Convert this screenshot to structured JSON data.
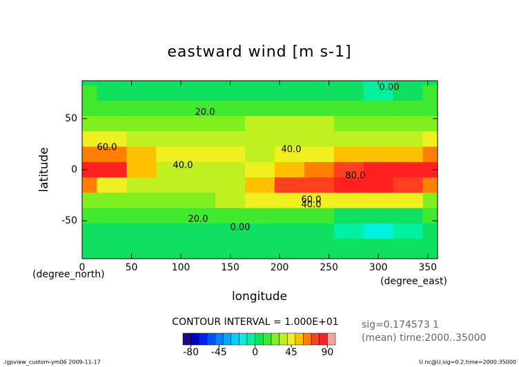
{
  "chart_data": {
    "type": "contour",
    "title": "eastward wind [m s-1]",
    "xlabel": "longitude",
    "ylabel": "latitude",
    "xunit": "(degree_east)",
    "yunit": "(degree_north)",
    "x": [
      0,
      30,
      60,
      90,
      120,
      150,
      180,
      210,
      240,
      270,
      300,
      330,
      360
    ],
    "y": [
      90,
      75,
      60,
      45,
      30,
      15,
      0,
      -15,
      -30,
      -45,
      -60,
      -75,
      -90
    ],
    "z": [
      [
        5,
        5,
        5,
        5,
        5,
        5,
        5,
        5,
        5,
        0,
        -2,
        5,
        5
      ],
      [
        10,
        8,
        8,
        8,
        8,
        8,
        8,
        5,
        5,
        2,
        -2,
        5,
        10
      ],
      [
        18,
        15,
        15,
        15,
        15,
        15,
        15,
        15,
        12,
        12,
        10,
        10,
        18
      ],
      [
        25,
        25,
        22,
        22,
        22,
        25,
        30,
        32,
        32,
        28,
        22,
        20,
        25
      ],
      [
        45,
        42,
        35,
        32,
        32,
        35,
        35,
        35,
        35,
        35,
        38,
        38,
        45
      ],
      [
        65,
        62,
        55,
        42,
        40,
        42,
        38,
        40,
        45,
        50,
        52,
        55,
        65
      ],
      [
        82,
        80,
        58,
        38,
        35,
        35,
        42,
        55,
        68,
        78,
        82,
        85,
        82
      ],
      [
        65,
        48,
        35,
        35,
        35,
        38,
        55,
        72,
        78,
        80,
        80,
        78,
        65
      ],
      [
        28,
        22,
        20,
        20,
        22,
        38,
        48,
        45,
        42,
        42,
        42,
        40,
        28
      ],
      [
        12,
        10,
        10,
        12,
        15,
        15,
        15,
        12,
        10,
        8,
        5,
        8,
        12
      ],
      [
        5,
        5,
        5,
        5,
        5,
        5,
        5,
        5,
        2,
        -5,
        -15,
        -5,
        5
      ],
      [
        5,
        5,
        3,
        3,
        3,
        3,
        3,
        3,
        3,
        2,
        0,
        2,
        5
      ],
      [
        5,
        5,
        5,
        5,
        5,
        5,
        5,
        5,
        5,
        5,
        5,
        5,
        5
      ]
    ],
    "xlim": [
      0,
      360
    ],
    "ylim": [
      -87,
      87
    ],
    "xticks": [
      0,
      50,
      100,
      150,
      200,
      250,
      300,
      350
    ],
    "yticks": [
      -50,
      0,
      50
    ],
    "contour_labels": [
      "0.00",
      "0.00",
      "20.0",
      "20.0",
      "40.0",
      "40.0",
      "40.0",
      "60.0",
      "60.0",
      "80.0"
    ],
    "colorbar": {
      "title": "CONTOUR INTERVAL = 1.000E+01",
      "levels": [
        -90,
        -80,
        -70,
        -60,
        -50,
        -40,
        -30,
        -20,
        -10,
        0,
        10,
        20,
        30,
        40,
        50,
        60,
        70,
        80,
        90,
        100
      ],
      "colors": [
        "#1a0a8c",
        "#0000c8",
        "#0020ff",
        "#0050ff",
        "#0080ff",
        "#00a8ff",
        "#00d0ff",
        "#00f0e0",
        "#00f0a0",
        "#10e060",
        "#40e830",
        "#80f020",
        "#c0f020",
        "#f0f020",
        "#ffc000",
        "#ff8000",
        "#ff4020",
        "#ff2020",
        "#ffa0a0"
      ],
      "xlim": [
        -90,
        100
      ],
      "ticks": [
        -80,
        -45,
        0,
        45,
        90
      ]
    },
    "notes": [
      "sig=0.174573 1",
      "(mean) time:2000..35000"
    ],
    "footer_left": "./gpview_custom-ym06  2009-11-17",
    "footer_right": "U.nc@U,sig=0.2,time=2000:35000"
  }
}
